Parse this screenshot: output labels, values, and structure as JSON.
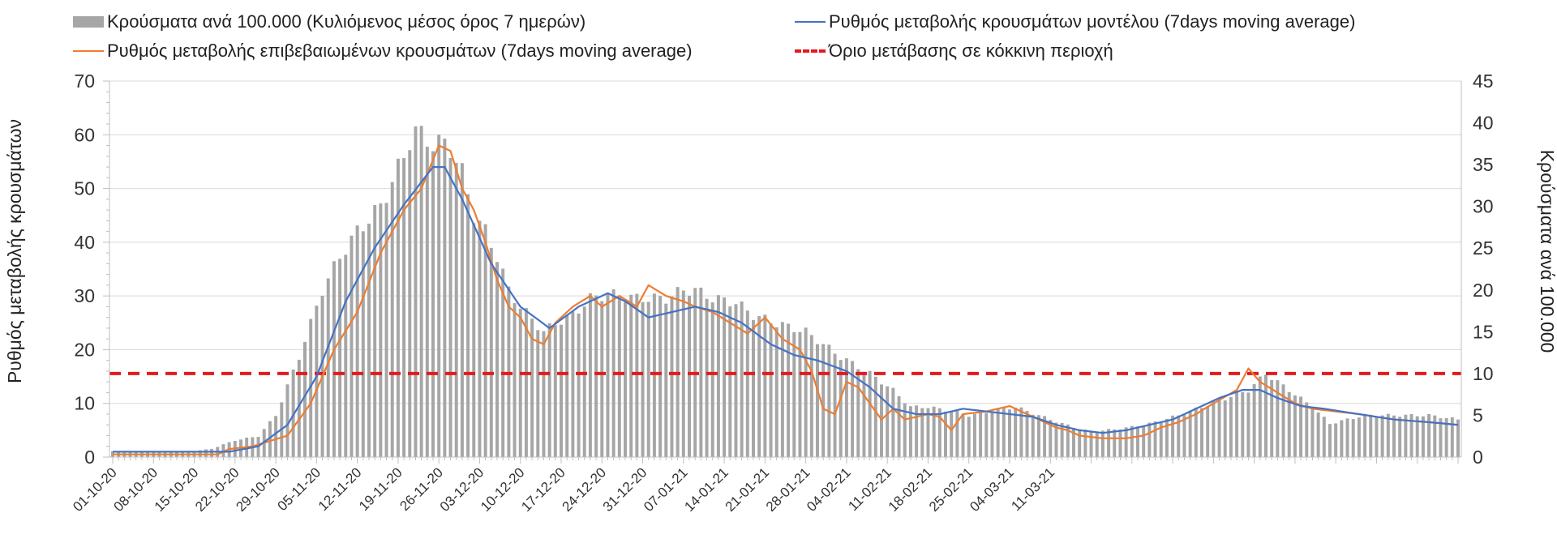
{
  "chart_data": {
    "type": "bar+line",
    "title": "",
    "legend": {
      "placement": "top",
      "entries": [
        {
          "key": "bars",
          "label": "Κρούσματα ανά 100.000 (Κυλιόμενος μέσος όρος 7 ημερών)",
          "color": "#a6a6a6"
        },
        {
          "key": "model",
          "label": "Ρυθμός μεταβολής κρουσμάτων μοντέλου (7days moving average)",
          "color": "#4472c4"
        },
        {
          "key": "confirmed",
          "label": "Ρυθμός μεταβολής επιβεβαιωμένων κρουσμάτων (7days moving average)",
          "color": "#ed7d31"
        },
        {
          "key": "threshold",
          "label": "Όριο μετάβασης σε κόκκινη περιοχή",
          "color": "#e31a1c"
        }
      ]
    },
    "left_axis": {
      "label": "Ρυθμός μεταβολής κρουσμάτων",
      "min": 0,
      "max": 70,
      "ticks": [
        0,
        10,
        20,
        30,
        40,
        50,
        60,
        70
      ]
    },
    "right_axis": {
      "label": "Κρούσματα ανά 100.000",
      "min": 0,
      "max": 45,
      "ticks": [
        0,
        5,
        10,
        15,
        20,
        25,
        30,
        35,
        40,
        45
      ]
    },
    "x_tick_labels": [
      "01-10-20",
      "08-10-20",
      "15-10-20",
      "22-10-20",
      "29-10-20",
      "05-11-20",
      "12-11-20",
      "19-11-20",
      "26-11-20",
      "03-12-20",
      "10-12-20",
      "17-12-20",
      "24-12-20",
      "31-12-20",
      "07-01-21",
      "14-01-21",
      "21-01-21",
      "28-01-21",
      "04-02-21",
      "11-02-21",
      "18-02-21",
      "25-02-21",
      "04-03-21",
      "11-03-21"
    ],
    "grid": true,
    "series": [
      {
        "name": "Κρούσματα ανά 100.000 (Κυλιόμενος μέσος όρος 7 ημερών)",
        "type": "bar",
        "axis": "right",
        "color": "#a6a6a6",
        "anchors": [
          [
            0,
            0.7
          ],
          [
            7,
            0.7
          ],
          [
            14,
            0.7
          ],
          [
            17,
            1.0
          ],
          [
            21,
            2.0
          ],
          [
            25,
            2.5
          ],
          [
            28,
            5
          ],
          [
            32,
            12
          ],
          [
            36,
            20
          ],
          [
            39,
            24
          ],
          [
            40,
            25
          ],
          [
            41,
            26
          ],
          [
            42,
            27
          ],
          [
            46,
            30
          ],
          [
            50,
            36
          ],
          [
            51,
            38
          ],
          [
            52,
            39
          ],
          [
            54,
            38
          ],
          [
            55,
            37.5
          ],
          [
            57,
            37.5
          ],
          [
            58,
            37
          ],
          [
            60,
            34
          ],
          [
            62,
            29
          ],
          [
            64,
            27
          ],
          [
            66,
            24
          ],
          [
            68,
            20
          ],
          [
            70,
            18
          ],
          [
            74,
            15
          ],
          [
            76,
            16
          ],
          [
            79,
            17
          ],
          [
            82,
            19
          ],
          [
            85,
            19.5
          ],
          [
            90,
            19
          ],
          [
            93,
            19
          ],
          [
            95,
            19
          ],
          [
            98,
            20
          ],
          [
            100,
            20
          ],
          [
            103,
            19
          ],
          [
            107,
            18.5
          ],
          [
            110,
            17
          ],
          [
            114,
            16
          ],
          [
            119,
            15
          ],
          [
            125,
            12
          ],
          [
            130,
            10
          ],
          [
            134,
            8
          ],
          [
            137,
            6
          ],
          [
            140,
            6
          ],
          [
            144,
            5.5
          ],
          [
            147,
            5
          ],
          [
            151,
            5.5
          ],
          [
            155,
            6
          ],
          [
            159,
            5
          ],
          [
            163,
            4
          ],
          [
            168,
            3
          ],
          [
            174,
            3.5
          ],
          [
            178,
            4
          ],
          [
            183,
            5
          ],
          [
            187,
            6
          ],
          [
            191,
            7
          ],
          [
            195,
            8
          ],
          [
            198,
            10
          ],
          [
            202,
            8
          ],
          [
            206,
            6
          ],
          [
            209,
            4
          ],
          [
            212,
            4.5
          ],
          [
            215,
            5
          ],
          [
            220,
            5
          ],
          [
            226,
            5
          ],
          [
            231,
            4.5
          ]
        ]
      },
      {
        "name": "Ρυθμός μεταβολής κρουσμάτων μοντέλου (7days moving average)",
        "type": "line",
        "axis": "left",
        "color": "#4472c4",
        "anchors": [
          [
            0,
            1
          ],
          [
            20,
            1
          ],
          [
            25,
            2
          ],
          [
            30,
            6
          ],
          [
            35,
            15
          ],
          [
            40,
            29
          ],
          [
            45,
            39
          ],
          [
            50,
            47
          ],
          [
            55,
            54
          ],
          [
            57,
            54
          ],
          [
            60,
            48
          ],
          [
            65,
            36
          ],
          [
            70,
            28
          ],
          [
            75,
            24
          ],
          [
            80,
            28
          ],
          [
            85,
            30.5
          ],
          [
            88,
            29
          ],
          [
            92,
            26
          ],
          [
            96,
            27
          ],
          [
            100,
            28
          ],
          [
            104,
            27
          ],
          [
            108,
            25
          ],
          [
            113,
            21
          ],
          [
            117,
            19
          ],
          [
            121,
            18
          ],
          [
            126,
            16
          ],
          [
            130,
            13
          ],
          [
            134,
            9
          ],
          [
            138,
            8
          ],
          [
            142,
            8
          ],
          [
            146,
            9
          ],
          [
            150,
            8.5
          ],
          [
            154,
            8
          ],
          [
            158,
            7.5
          ],
          [
            162,
            6
          ],
          [
            166,
            5
          ],
          [
            170,
            4.5
          ],
          [
            174,
            5
          ],
          [
            178,
            6
          ],
          [
            182,
            7
          ],
          [
            186,
            9
          ],
          [
            190,
            11
          ],
          [
            194,
            12.5
          ],
          [
            197,
            12.5
          ],
          [
            200,
            11
          ],
          [
            204,
            9.5
          ],
          [
            208,
            9
          ],
          [
            214,
            8
          ],
          [
            220,
            7
          ],
          [
            226,
            6.5
          ],
          [
            231,
            6
          ]
        ]
      },
      {
        "name": "Ρυθμός μεταβολής επιβεβαιωμένων κρουσμάτων (7days moving average)",
        "type": "line",
        "axis": "left",
        "color": "#ed7d31",
        "anchors": [
          [
            0,
            0.5
          ],
          [
            18,
            0.5
          ],
          [
            20,
            1.5
          ],
          [
            24,
            2
          ],
          [
            30,
            4
          ],
          [
            34,
            10
          ],
          [
            38,
            20
          ],
          [
            42,
            27
          ],
          [
            46,
            38
          ],
          [
            50,
            46
          ],
          [
            53,
            50
          ],
          [
            56,
            58
          ],
          [
            58,
            57
          ],
          [
            60,
            50
          ],
          [
            62,
            46
          ],
          [
            64,
            40
          ],
          [
            66,
            33
          ],
          [
            68,
            28
          ],
          [
            70,
            26
          ],
          [
            72,
            22
          ],
          [
            74,
            21
          ],
          [
            76,
            25
          ],
          [
            79,
            28
          ],
          [
            82,
            30
          ],
          [
            84,
            28
          ],
          [
            87,
            30
          ],
          [
            90,
            28
          ],
          [
            92,
            32
          ],
          [
            95,
            30
          ],
          [
            98,
            29
          ],
          [
            100,
            28
          ],
          [
            103,
            27
          ],
          [
            106,
            25
          ],
          [
            109,
            23
          ],
          [
            112,
            26
          ],
          [
            115,
            22
          ],
          [
            118,
            20
          ],
          [
            120,
            16
          ],
          [
            122,
            9
          ],
          [
            124,
            8
          ],
          [
            126,
            14
          ],
          [
            128,
            13
          ],
          [
            130,
            10
          ],
          [
            132,
            7
          ],
          [
            134,
            9
          ],
          [
            136,
            7
          ],
          [
            140,
            8
          ],
          [
            142,
            7.5
          ],
          [
            144,
            5
          ],
          [
            146,
            8
          ],
          [
            150,
            8.5
          ],
          [
            154,
            9.5
          ],
          [
            158,
            7.5
          ],
          [
            162,
            5.5
          ],
          [
            164,
            5
          ],
          [
            166,
            4
          ],
          [
            170,
            3.5
          ],
          [
            174,
            3.5
          ],
          [
            177,
            4
          ],
          [
            180,
            5.5
          ],
          [
            183,
            6.5
          ],
          [
            186,
            8
          ],
          [
            189,
            10
          ],
          [
            193,
            12.5
          ],
          [
            195,
            16.5
          ],
          [
            197,
            14
          ],
          [
            200,
            12
          ],
          [
            203,
            10
          ],
          [
            206,
            9
          ],
          [
            214,
            8
          ],
          [
            220,
            7
          ],
          [
            226,
            6.5
          ],
          [
            231,
            6
          ]
        ]
      },
      {
        "name": "Όριο μετάβασης σε κόκκινη περιοχή",
        "type": "line",
        "axis": "right",
        "color": "#e31a1c",
        "dash": true,
        "value": 10
      }
    ]
  }
}
